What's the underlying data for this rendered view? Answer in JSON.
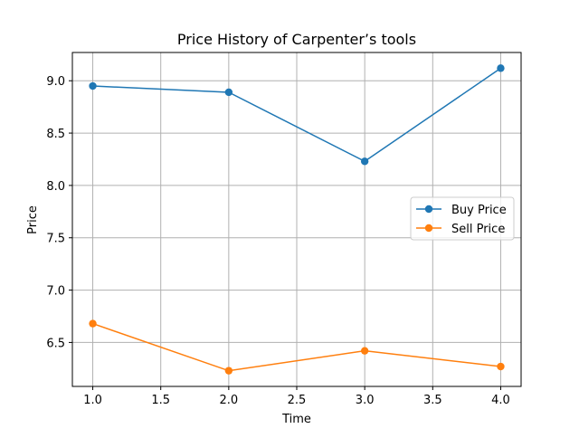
{
  "chart_data": {
    "type": "line",
    "title": "Price History of Carpenter’s tools",
    "xlabel": "Time",
    "ylabel": "Price",
    "x": [
      1.0,
      2.0,
      3.0,
      4.0
    ],
    "xlim": [
      0.85,
      4.15
    ],
    "ylim": [
      6.08,
      9.27
    ],
    "xticks": [
      1.0,
      1.5,
      2.0,
      2.5,
      3.0,
      3.5,
      4.0
    ],
    "xtick_labels": [
      "1.0",
      "1.5",
      "2.0",
      "2.5",
      "3.0",
      "3.5",
      "4.0"
    ],
    "yticks": [
      6.5,
      7.0,
      7.5,
      8.0,
      8.5,
      9.0
    ],
    "ytick_labels": [
      "6.5",
      "7.0",
      "7.5",
      "8.0",
      "8.5",
      "9.0"
    ],
    "grid": true,
    "legend_position": "center-right",
    "series": [
      {
        "name": "Buy Price",
        "color": "#1f77b4",
        "values": [
          8.95,
          8.89,
          8.23,
          9.12
        ]
      },
      {
        "name": "Sell Price",
        "color": "#ff7f0e",
        "values": [
          6.68,
          6.23,
          6.42,
          6.27
        ]
      }
    ]
  }
}
